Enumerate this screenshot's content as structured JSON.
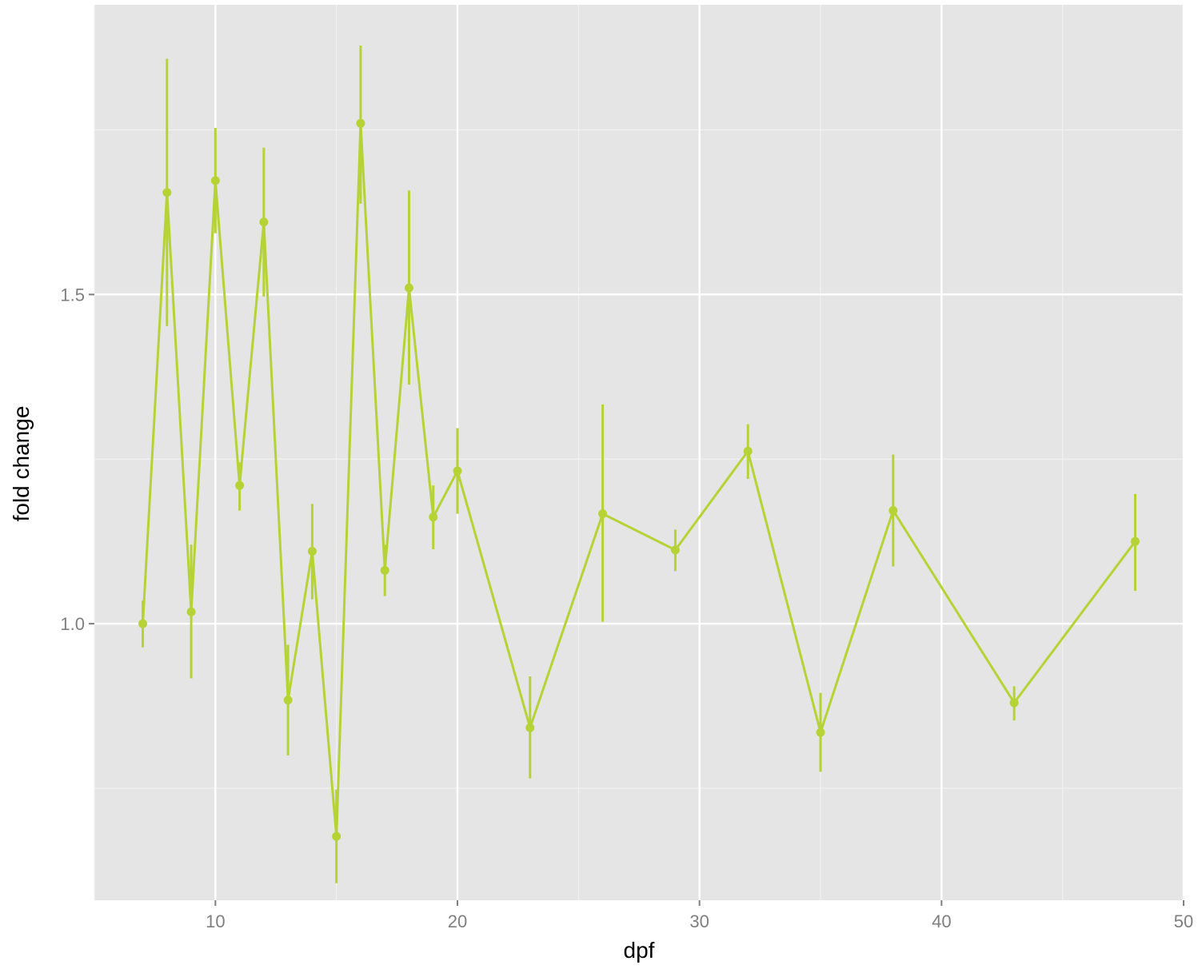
{
  "chart_data": {
    "type": "line",
    "xlabel": "dpf",
    "ylabel": "fold change",
    "xlim": [
      5,
      50
    ],
    "ylim": [
      0.58,
      1.94
    ],
    "x_ticks": [
      10,
      20,
      30,
      40,
      50
    ],
    "x_tick_labels": [
      "10",
      "20",
      "30",
      "40",
      "50"
    ],
    "y_ticks": [
      1.0,
      1.5
    ],
    "y_tick_labels": [
      "1.0",
      "1.5"
    ],
    "grid": true,
    "series": [
      {
        "color": "#b5d334",
        "points": [
          {
            "x": 7,
            "y": 1.0,
            "ymin": 0.964,
            "ymax": 1.035
          },
          {
            "x": 8,
            "y": 1.655,
            "ymin": 1.452,
            "ymax": 1.858
          },
          {
            "x": 9,
            "y": 1.018,
            "ymin": 0.917,
            "ymax": 1.12
          },
          {
            "x": 10,
            "y": 1.673,
            "ymin": 1.593,
            "ymax": 1.753
          },
          {
            "x": 11,
            "y": 1.21,
            "ymin": 1.172,
            "ymax": 1.245
          },
          {
            "x": 12,
            "y": 1.61,
            "ymin": 1.497,
            "ymax": 1.723
          },
          {
            "x": 13,
            "y": 0.884,
            "ymin": 0.8,
            "ymax": 0.968
          },
          {
            "x": 14,
            "y": 1.11,
            "ymin": 1.037,
            "ymax": 1.182
          },
          {
            "x": 15,
            "y": 0.677,
            "ymin": 0.606,
            "ymax": 0.748
          },
          {
            "x": 16,
            "y": 1.76,
            "ymin": 1.638,
            "ymax": 1.878
          },
          {
            "x": 17,
            "y": 1.081,
            "ymin": 1.042,
            "ymax": 1.12
          },
          {
            "x": 18,
            "y": 1.51,
            "ymin": 1.363,
            "ymax": 1.658
          },
          {
            "x": 19,
            "y": 1.162,
            "ymin": 1.113,
            "ymax": 1.21
          },
          {
            "x": 20,
            "y": 1.232,
            "ymin": 1.167,
            "ymax": 1.297
          },
          {
            "x": 23,
            "y": 0.842,
            "ymin": 0.765,
            "ymax": 0.92
          },
          {
            "x": 26,
            "y": 1.167,
            "ymin": 1.003,
            "ymax": 1.333
          },
          {
            "x": 29,
            "y": 1.112,
            "ymin": 1.08,
            "ymax": 1.143
          },
          {
            "x": 32,
            "y": 1.262,
            "ymin": 1.22,
            "ymax": 1.303
          },
          {
            "x": 35,
            "y": 0.835,
            "ymin": 0.775,
            "ymax": 0.895
          },
          {
            "x": 38,
            "y": 1.172,
            "ymin": 1.087,
            "ymax": 1.257
          },
          {
            "x": 43,
            "y": 0.88,
            "ymin": 0.853,
            "ymax": 0.905
          },
          {
            "x": 48,
            "y": 1.125,
            "ymin": 1.05,
            "ymax": 1.197
          }
        ]
      }
    ]
  }
}
